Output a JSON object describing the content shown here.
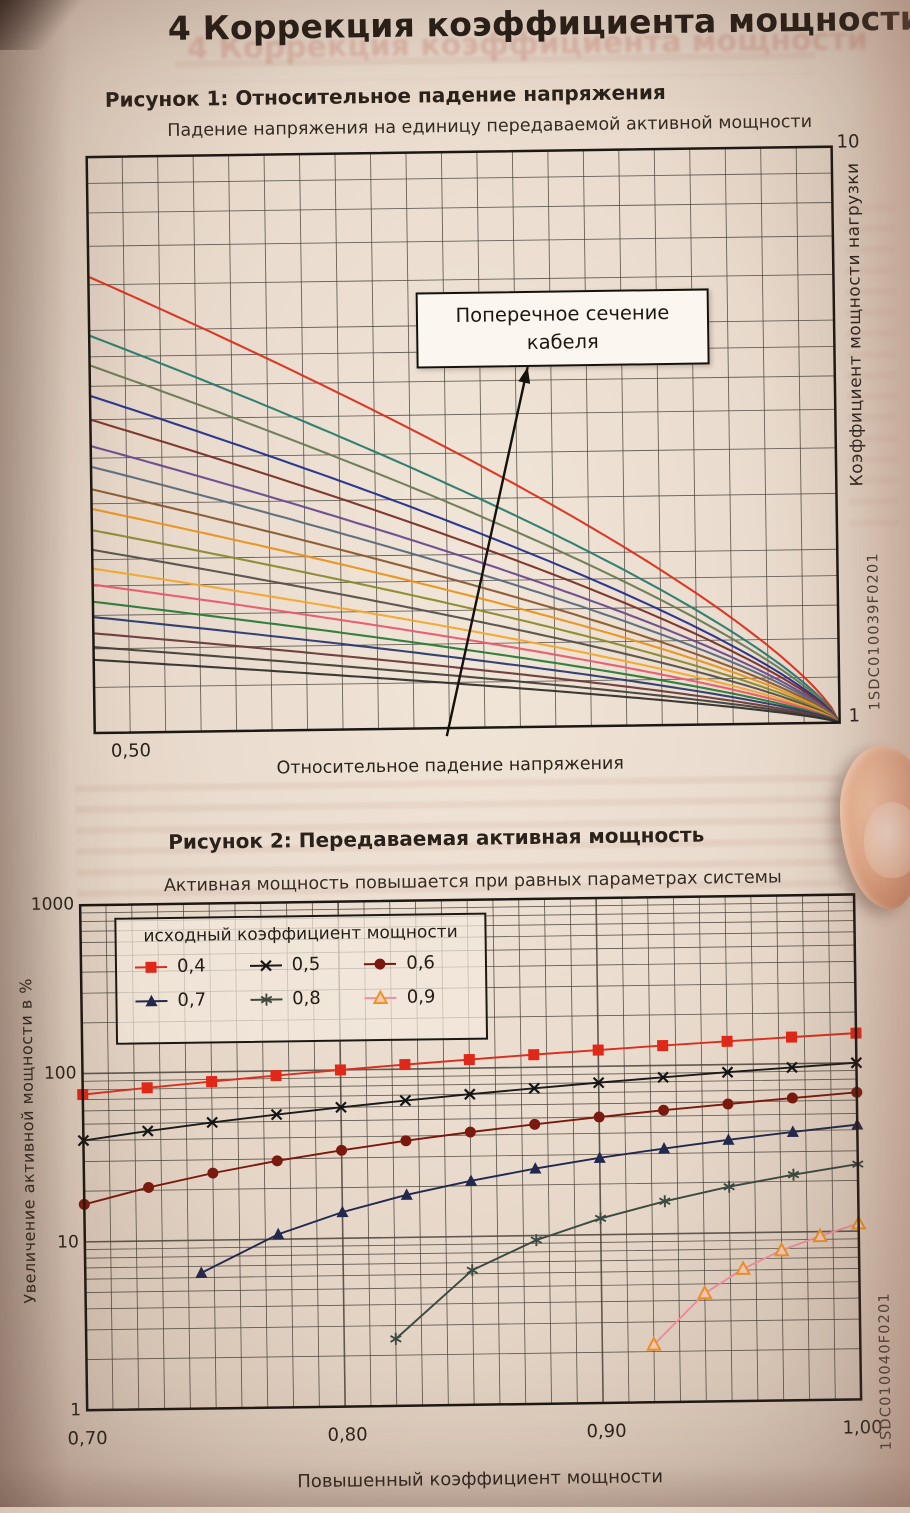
{
  "page": {
    "heading": "4 Коррекция коэффициента мощности"
  },
  "figure1": {
    "caption": "Рисунок 1: Относительное падение напряжения",
    "subtitle": "Падение напряжения на единицу передаваемой активной мощности",
    "annotation": "Поперечное сечение кабеля",
    "x_axis_label": "Относительное падение напряжения",
    "right_axis_label": "Коэффициент мощности нагрузки",
    "x_tick": "0,50",
    "y_tick_top": "10",
    "y_tick_bottom": "1",
    "side_code": "1SDC010039F0201"
  },
  "figure2": {
    "caption": "Рисунок 2: Передаваемая активная мощность",
    "subtitle": "Активная мощность повышается при равных параметрах системы",
    "y_axis_label": "Увеличение активной мощности в %",
    "x_axis_label": "Повышенный коэффициент мощности",
    "legend_title": "исходный коэффициент мощности",
    "x_ticks": [
      "0,70",
      "0,80",
      "0,90",
      "1,00"
    ],
    "y_ticks": [
      "1000",
      "100",
      "10",
      "1"
    ],
    "side_code": "1SDC010040F0201"
  },
  "chart_data": [
    {
      "type": "line",
      "title": "Падение напряжения на единицу передаваемой активной мощности",
      "xlabel": "Относительное падение напряжения",
      "ylabel_right": "Коэффициент мощности нагрузки",
      "annotation": "Поперечное сечение кабеля",
      "x_range": [
        0.475,
        1.0
      ],
      "x_tick_labels": [
        "0,50"
      ],
      "y_scale": "log",
      "ylim": [
        1,
        10
      ],
      "y_gridlines": [
        1.2,
        1.4,
        1.6,
        1.8,
        2,
        2.5,
        3,
        3.5,
        4,
        4.5,
        5,
        6,
        7,
        8,
        9
      ],
      "note": "Семейство кривых для возрастающих сечений кабеля; все кривые сходятся к 1 при коэффициенте мощности 1,0",
      "series": [
        {
          "name": "curve-01",
          "color": "#d8321e",
          "y_left": 6.2
        },
        {
          "name": "curve-02",
          "color": "#2a7a6e",
          "y_left": 4.9
        },
        {
          "name": "curve-03",
          "color": "#6a7a55",
          "y_left": 4.35
        },
        {
          "name": "curve-04",
          "color": "#24308a",
          "y_left": 3.85
        },
        {
          "name": "curve-05",
          "color": "#7a3028",
          "y_left": 3.5
        },
        {
          "name": "curve-06",
          "color": "#6a4a8c",
          "y_left": 3.15
        },
        {
          "name": "curve-07",
          "color": "#5a6a7c",
          "y_left": 2.9
        },
        {
          "name": "curve-08",
          "color": "#8a5a2e",
          "y_left": 2.65
        },
        {
          "name": "curve-09",
          "color": "#e8941e",
          "y_left": 2.45
        },
        {
          "name": "curve-10",
          "color": "#8a8a2e",
          "y_left": 2.25
        },
        {
          "name": "curve-11",
          "color": "#56504a",
          "y_left": 2.08
        },
        {
          "name": "curve-12",
          "color": "#f0a832",
          "y_left": 1.93
        },
        {
          "name": "curve-13",
          "color": "#e85a6e",
          "y_left": 1.81
        },
        {
          "name": "curve-14",
          "color": "#2a7a36",
          "y_left": 1.69
        },
        {
          "name": "curve-15",
          "color": "#2a3a6e",
          "y_left": 1.59
        },
        {
          "name": "curve-16",
          "color": "#6a3a3a",
          "y_left": 1.49
        },
        {
          "name": "curve-17",
          "color": "#44403a",
          "y_left": 1.41
        },
        {
          "name": "curve-18",
          "color": "#32302c",
          "y_left": 1.34
        }
      ]
    },
    {
      "type": "line",
      "title": "Активная мощность повышается при равных параметрах системы",
      "xlabel": "Повышенный коэффициент мощности",
      "ylabel": "Увеличение активной мощности в %",
      "legend_title": "исходный коэффициент мощности",
      "legend_position": "top-left",
      "x_range": [
        0.7,
        1.0
      ],
      "y_scale": "log",
      "ylim": [
        1,
        1000
      ],
      "series": [
        {
          "name": "0,4",
          "marker": "square",
          "line_color": "#d83020",
          "marker_color": "#e02818",
          "points": [
            [
              0.7,
              75
            ],
            [
              0.725,
              81.3
            ],
            [
              0.75,
              87.5
            ],
            [
              0.775,
              93.8
            ],
            [
              0.8,
              100
            ],
            [
              0.825,
              106.3
            ],
            [
              0.85,
              112.5
            ],
            [
              0.875,
              118.8
            ],
            [
              0.9,
              125
            ],
            [
              0.925,
              131.3
            ],
            [
              0.95,
              137.5
            ],
            [
              0.975,
              143.8
            ],
            [
              1.0,
              150
            ]
          ]
        },
        {
          "name": "0,5",
          "marker": "x",
          "line_color": "#1b1b1b",
          "marker_color": "#141414",
          "points": [
            [
              0.7,
              40
            ],
            [
              0.725,
              45
            ],
            [
              0.75,
              50
            ],
            [
              0.775,
              55
            ],
            [
              0.8,
              60
            ],
            [
              0.825,
              65
            ],
            [
              0.85,
              70
            ],
            [
              0.875,
              75
            ],
            [
              0.9,
              80
            ],
            [
              0.925,
              85
            ],
            [
              0.95,
              90
            ],
            [
              0.975,
              95
            ],
            [
              1.0,
              100
            ]
          ]
        },
        {
          "name": "0,6",
          "marker": "circle",
          "line_color": "#7a190d",
          "marker_color": "#7a190d",
          "points": [
            [
              0.7,
              16.7
            ],
            [
              0.725,
              20.8
            ],
            [
              0.75,
              25
            ],
            [
              0.775,
              29.2
            ],
            [
              0.8,
              33.3
            ],
            [
              0.825,
              37.5
            ],
            [
              0.85,
              41.7
            ],
            [
              0.875,
              45.8
            ],
            [
              0.9,
              50
            ],
            [
              0.925,
              54.2
            ],
            [
              0.95,
              58.3
            ],
            [
              0.975,
              62.5
            ],
            [
              1.0,
              66.7
            ]
          ]
        },
        {
          "name": "0,7",
          "marker": "triangle",
          "line_color": "#23284e",
          "marker_color": "#23284e",
          "points": [
            [
              0.745,
              6.4
            ],
            [
              0.775,
              10.7
            ],
            [
              0.8,
              14.3
            ],
            [
              0.825,
              17.9
            ],
            [
              0.85,
              21.4
            ],
            [
              0.875,
              25
            ],
            [
              0.9,
              28.6
            ],
            [
              0.925,
              32.1
            ],
            [
              0.95,
              35.7
            ],
            [
              0.975,
              39.3
            ],
            [
              1.0,
              42.9
            ]
          ]
        },
        {
          "name": "0,8",
          "marker": "asterisk",
          "line_color": "#3c4a40",
          "marker_color": "#3c4a40",
          "points": [
            [
              0.82,
              2.5
            ],
            [
              0.85,
              6.3
            ],
            [
              0.875,
              9.4
            ],
            [
              0.9,
              12.5
            ],
            [
              0.925,
              15.6
            ],
            [
              0.95,
              18.8
            ],
            [
              0.975,
              21.9
            ],
            [
              1.0,
              25
            ]
          ]
        },
        {
          "name": "0,9",
          "marker": "triangle-open",
          "line_color": "#ef8fa0",
          "marker_color": "#ef8fa0",
          "marker_fill": "#f9c9b6",
          "marker_stroke": "#eb9427",
          "points": [
            [
              0.92,
              2.2
            ],
            [
              0.94,
              4.4
            ],
            [
              0.955,
              6.1
            ],
            [
              0.97,
              7.8
            ],
            [
              0.985,
              9.4
            ],
            [
              1.0,
              11.1
            ]
          ]
        }
      ]
    }
  ]
}
